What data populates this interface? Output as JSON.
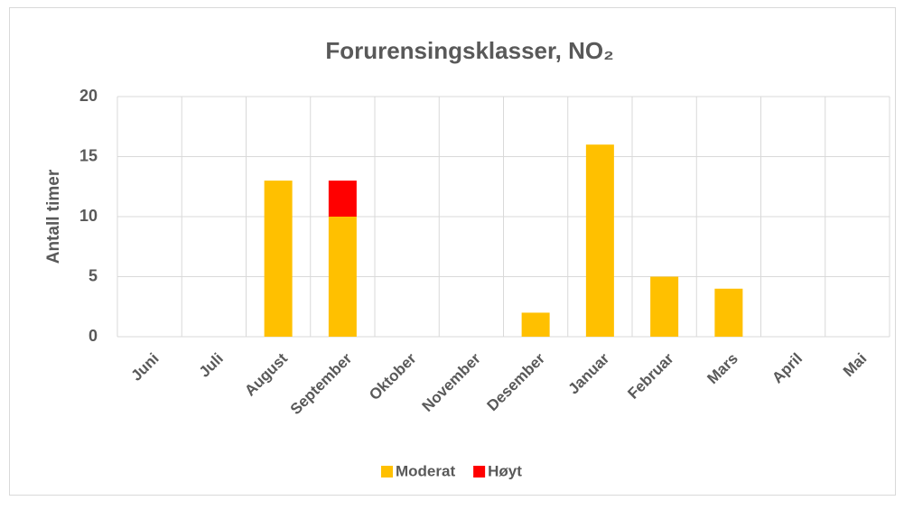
{
  "chart_data": {
    "type": "stacked_bar",
    "title": "Forurensingsklasser, NO₂",
    "y_label": "Antall timer",
    "categories": [
      "Juni",
      "Juli",
      "August",
      "September",
      "Oktober",
      "November",
      "Desember",
      "Januar",
      "Februar",
      "Mars",
      "April",
      "Mai"
    ],
    "series": [
      {
        "name": "Moderat",
        "color": "#FFC000",
        "values": [
          0,
          0,
          13,
          10,
          0,
          0,
          2,
          16,
          5,
          4,
          0,
          0
        ]
      },
      {
        "name": "Høyt",
        "color": "#FF0000",
        "values": [
          0,
          0,
          0,
          3,
          0,
          0,
          0,
          0,
          0,
          0,
          0,
          0
        ]
      }
    ],
    "ylim": [
      0,
      20
    ],
    "yticks": [
      0,
      5,
      10,
      15,
      20
    ],
    "grid": true,
    "legend": "bottom"
  }
}
